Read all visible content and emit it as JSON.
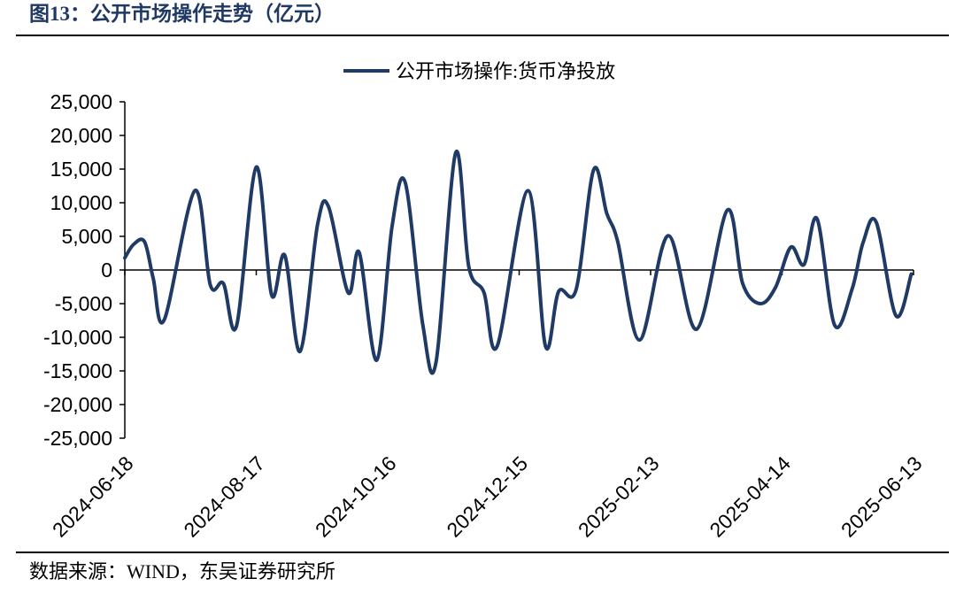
{
  "colors": {
    "caption": "#1f3864",
    "axis": "#000000"
  },
  "chart_data": {
    "type": "line",
    "title": "图13：公开市场操作走势（亿元）",
    "source": "数据来源：WIND，东吴证券研究所",
    "legend": "top-center",
    "grid": false,
    "xlim": [
      "2024-06-18",
      "2025-06-13"
    ],
    "ylim": [
      -25000,
      25000
    ],
    "x_ticks": [
      "2024-06-18",
      "2024-08-17",
      "2024-10-16",
      "2024-12-15",
      "2025-02-13",
      "2025-04-14",
      "2025-06-13"
    ],
    "y_ticks": [
      {
        "value": 25000,
        "label": "25,000"
      },
      {
        "value": 20000,
        "label": "20,000"
      },
      {
        "value": 15000,
        "label": "15,000"
      },
      {
        "value": 10000,
        "label": "10,000"
      },
      {
        "value": 5000,
        "label": "5,000"
      },
      {
        "value": 0,
        "label": "0"
      },
      {
        "value": -5000,
        "label": "-5,000"
      },
      {
        "value": -10000,
        "label": "-10,000"
      },
      {
        "value": -15000,
        "label": "-15,000"
      },
      {
        "value": -20000,
        "label": "-20,000"
      },
      {
        "value": -25000,
        "label": "-25,000"
      }
    ],
    "series": [
      {
        "name": "公开市场操作:货币净投放",
        "color": "#203a66",
        "x": [
          "2024-06-18",
          "2024-06-22",
          "2024-06-27",
          "2024-07-01",
          "2024-07-06",
          "2024-07-20",
          "2024-07-27",
          "2024-08-02",
          "2024-08-08",
          "2024-08-17",
          "2024-08-24",
          "2024-08-30",
          "2024-09-06",
          "2024-09-14",
          "2024-09-19",
          "2024-09-28",
          "2024-10-03",
          "2024-10-11",
          "2024-10-18",
          "2024-10-24",
          "2024-11-01",
          "2024-11-07",
          "2024-11-16",
          "2024-11-22",
          "2024-11-29",
          "2024-12-05",
          "2024-12-19",
          "2024-12-27",
          "2025-01-02",
          "2025-01-10",
          "2025-01-18",
          "2025-01-24",
          "2025-01-29",
          "2025-02-08",
          "2025-02-21",
          "2025-03-06",
          "2025-03-20",
          "2025-03-27",
          "2025-04-04",
          "2025-04-11",
          "2025-04-18",
          "2025-04-24",
          "2025-04-30",
          "2025-05-08",
          "2025-05-16",
          "2025-05-21",
          "2025-05-27",
          "2025-06-05",
          "2025-06-12"
        ],
        "y": [
          1800,
          3800,
          4200,
          -1300,
          -7400,
          11800,
          -2200,
          -2000,
          -8300,
          15300,
          -3700,
          2200,
          -12100,
          6800,
          9400,
          -3400,
          2600,
          -13400,
          6500,
          13000,
          -8100,
          -13800,
          17400,
          500,
          -3400,
          -11300,
          11800,
          -11300,
          -3200,
          -2900,
          14900,
          8400,
          4200,
          -10400,
          5100,
          -8800,
          8900,
          -2000,
          -5000,
          -2600,
          3400,
          800,
          7600,
          -8200,
          -2800,
          4100,
          7100,
          -6800,
          -600
        ]
      }
    ]
  }
}
